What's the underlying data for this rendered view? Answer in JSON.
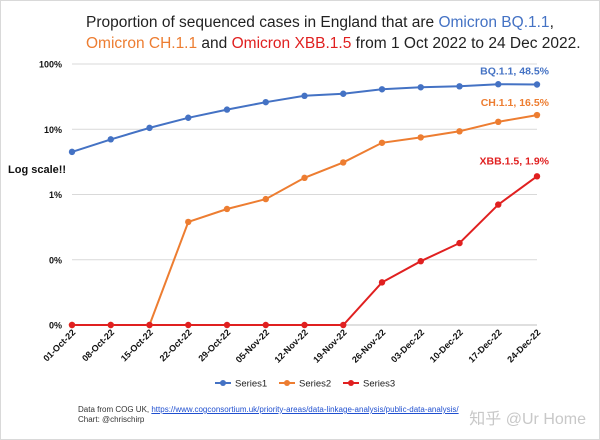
{
  "chart_data": {
    "type": "line",
    "title_parts": {
      "prefix": "Proportion of sequenced cases in England that are ",
      "s1": "Omicron BQ.1.1",
      "sep1": ", ",
      "s2": "Omicron CH.1.1",
      "sep2": " and ",
      "s3": "Omicron XBB.1.5",
      "suffix": " from 1 Oct 2022 to 24 Dec 2022."
    },
    "ylabel": "Log scale!!",
    "y_ticks": [
      "0%",
      "0%",
      "1%",
      "10%",
      "100%"
    ],
    "categories": [
      "01-Oct-22",
      "08-Oct-22",
      "15-Oct-22",
      "22-Oct-22",
      "29-Oct-22",
      "05-Nov-22",
      "12-Nov-22",
      "19-Nov-22",
      "26-Nov-22",
      "03-Dec-22",
      "10-Dec-22",
      "17-Dec-22",
      "24-Dec-22"
    ],
    "series": [
      {
        "name": "Series1",
        "color": "#4472c4",
        "values": [
          4.5,
          7,
          10.5,
          15,
          20,
          26,
          32.5,
          35,
          41,
          44,
          45.5,
          49,
          48.5
        ],
        "end_label": "BQ.1.1, 48.5%"
      },
      {
        "name": "Series2",
        "color": "#ed7d31",
        "values": [
          0,
          0,
          0,
          0.38,
          0.6,
          0.85,
          1.8,
          3.1,
          6.2,
          7.5,
          9.3,
          13,
          16.5
        ],
        "end_label": "CH.1.1, 16.5%"
      },
      {
        "name": "Series3",
        "color": "#e02020",
        "values": [
          0,
          0,
          0,
          0,
          0,
          0,
          0,
          0,
          0.045,
          0.095,
          0.18,
          0.7,
          1.9
        ],
        "end_label": "XBB.1.5, 1.9%"
      }
    ]
  },
  "footer": {
    "source_prefix": "Data from COG UK, ",
    "source_link": "https://www.cogconsortium.uk/priority-areas/data-linkage-analysis/public-data-analysis/",
    "chart_credit": "Chart: @chrischirp"
  },
  "watermark": "知乎 @Ur Home"
}
